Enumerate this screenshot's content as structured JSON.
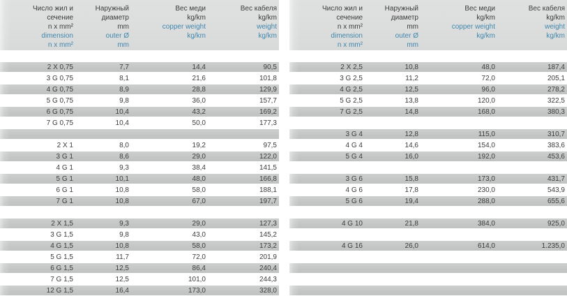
{
  "colors": {
    "header_bg": "#dcdddd",
    "row_gray": "#c6c7c7",
    "text_dark": "#3b3b3b",
    "text_blue": "#4187ac",
    "page_bg": "#ffffff"
  },
  "header": {
    "columns": [
      {
        "ru": [
          "Число жил и",
          "сечение",
          "n x mm²"
        ],
        "en": [
          "dimension",
          "n x mm²"
        ]
      },
      {
        "ru": [
          "Наружный",
          "диаметр",
          "mm"
        ],
        "en": [
          "outer Ø",
          "mm"
        ]
      },
      {
        "ru": [
          "Вес меди",
          "kg/km"
        ],
        "en": [
          "copper weight",
          "kg/km"
        ]
      },
      {
        "ru": [
          "Вес кабеля",
          "kg/km"
        ],
        "en": [
          "weight",
          "kg/km"
        ]
      }
    ]
  },
  "tables": {
    "left": {
      "rows": [
        {
          "dimension": "2 X 0,75",
          "outer_mm": "7,7",
          "copper_kg_km": "14,4",
          "cable_kg_km": "90,5"
        },
        {
          "dimension": "3 G 0,75",
          "outer_mm": "8,1",
          "copper_kg_km": "21,6",
          "cable_kg_km": "101,8"
        },
        {
          "dimension": "4 G 0,75",
          "outer_mm": "8,9",
          "copper_kg_km": "28,8",
          "cable_kg_km": "129,9"
        },
        {
          "dimension": "5 G 0,75",
          "outer_mm": "9,8",
          "copper_kg_km": "36,0",
          "cable_kg_km": "157,7"
        },
        {
          "dimension": "6 G 0,75",
          "outer_mm": "10,4",
          "copper_kg_km": "43,2",
          "cable_kg_km": "169,2"
        },
        {
          "dimension": "7 G 0,75",
          "outer_mm": "10,4",
          "copper_kg_km": "50,0",
          "cable_kg_km": "177,3"
        },
        {
          "empty": true
        },
        {
          "dimension": "2 X 1",
          "outer_mm": "8,0",
          "copper_kg_km": "19,2",
          "cable_kg_km": "97,5"
        },
        {
          "dimension": "3 G 1",
          "outer_mm": "8,6",
          "copper_kg_km": "29,0",
          "cable_kg_km": "122,0"
        },
        {
          "dimension": "4 G 1",
          "outer_mm": "9,3",
          "copper_kg_km": "38,4",
          "cable_kg_km": "141,5"
        },
        {
          "dimension": "5 G 1",
          "outer_mm": "10,1",
          "copper_kg_km": "48,0",
          "cable_kg_km": "166,8"
        },
        {
          "dimension": "6 G 1",
          "outer_mm": "10,8",
          "copper_kg_km": "58,0",
          "cable_kg_km": "188,1"
        },
        {
          "dimension": "7 G 1",
          "outer_mm": "10,8",
          "copper_kg_km": "67,0",
          "cable_kg_km": "197,7"
        },
        {
          "empty": true
        },
        {
          "dimension": "2 X 1,5",
          "outer_mm": "9,3",
          "copper_kg_km": "29,0",
          "cable_kg_km": "127,3"
        },
        {
          "dimension": "3 G 1,5",
          "outer_mm": "9,8",
          "copper_kg_km": "43,0",
          "cable_kg_km": "145,2"
        },
        {
          "dimension": "4 G 1,5",
          "outer_mm": "10,8",
          "copper_kg_km": "58,0",
          "cable_kg_km": "173,2"
        },
        {
          "dimension": "5 G 1,5",
          "outer_mm": "11,7",
          "copper_kg_km": "72,0",
          "cable_kg_km": "201,9"
        },
        {
          "dimension": "6 G 1,5",
          "outer_mm": "12,5",
          "copper_kg_km": "86,4",
          "cable_kg_km": "240,4"
        },
        {
          "dimension": "7 G 1,5",
          "outer_mm": "12,5",
          "copper_kg_km": "101,0",
          "cable_kg_km": "244,3"
        },
        {
          "dimension": "12 G 1,5",
          "outer_mm": "16,4",
          "copper_kg_km": "173,0",
          "cable_kg_km": "328,0"
        }
      ]
    },
    "right": {
      "rows": [
        {
          "dimension": "2 X 2,5",
          "outer_mm": "10,8",
          "copper_kg_km": "48,0",
          "cable_kg_km": "187,4"
        },
        {
          "dimension": "3 G 2,5",
          "outer_mm": "11,2",
          "copper_kg_km": "72,0",
          "cable_kg_km": "205,1"
        },
        {
          "dimension": "4 G 2,5",
          "outer_mm": "12,5",
          "copper_kg_km": "96,0",
          "cable_kg_km": "278,2"
        },
        {
          "dimension": "5 G 2,5",
          "outer_mm": "13,8",
          "copper_kg_km": "120,0",
          "cable_kg_km": "322,5"
        },
        {
          "dimension": "7 G 2,5",
          "outer_mm": "14,8",
          "copper_kg_km": "168,0",
          "cable_kg_km": "380,3"
        },
        {
          "empty": true
        },
        {
          "dimension": "3 G 4",
          "outer_mm": "12,8",
          "copper_kg_km": "115,0",
          "cable_kg_km": "310,7"
        },
        {
          "dimension": "4 G 4",
          "outer_mm": "14,6",
          "copper_kg_km": "154,0",
          "cable_kg_km": "383,6"
        },
        {
          "dimension": "5 G 4",
          "outer_mm": "16,0",
          "copper_kg_km": "192,0",
          "cable_kg_km": "453,6"
        },
        {
          "empty": true
        },
        {
          "dimension": "3 G 6",
          "outer_mm": "15,8",
          "copper_kg_km": "173,0",
          "cable_kg_km": "431,7"
        },
        {
          "dimension": "4 G 6",
          "outer_mm": "17,8",
          "copper_kg_km": "230,0",
          "cable_kg_km": "543,9"
        },
        {
          "dimension": "5 G 6",
          "outer_mm": "19,4",
          "copper_kg_km": "288,0",
          "cable_kg_km": "655,6"
        },
        {
          "empty": true
        },
        {
          "dimension": "4 G 10",
          "outer_mm": "21,8",
          "copper_kg_km": "384,0",
          "cable_kg_km": "925,0"
        },
        {
          "empty": true
        },
        {
          "dimension": "4 G 16",
          "outer_mm": "26,0",
          "copper_kg_km": "614,0",
          "cable_kg_km": "1.235,0"
        },
        {
          "empty": true
        },
        {
          "empty": true
        },
        {
          "empty": true
        },
        {
          "empty": true
        }
      ]
    }
  }
}
